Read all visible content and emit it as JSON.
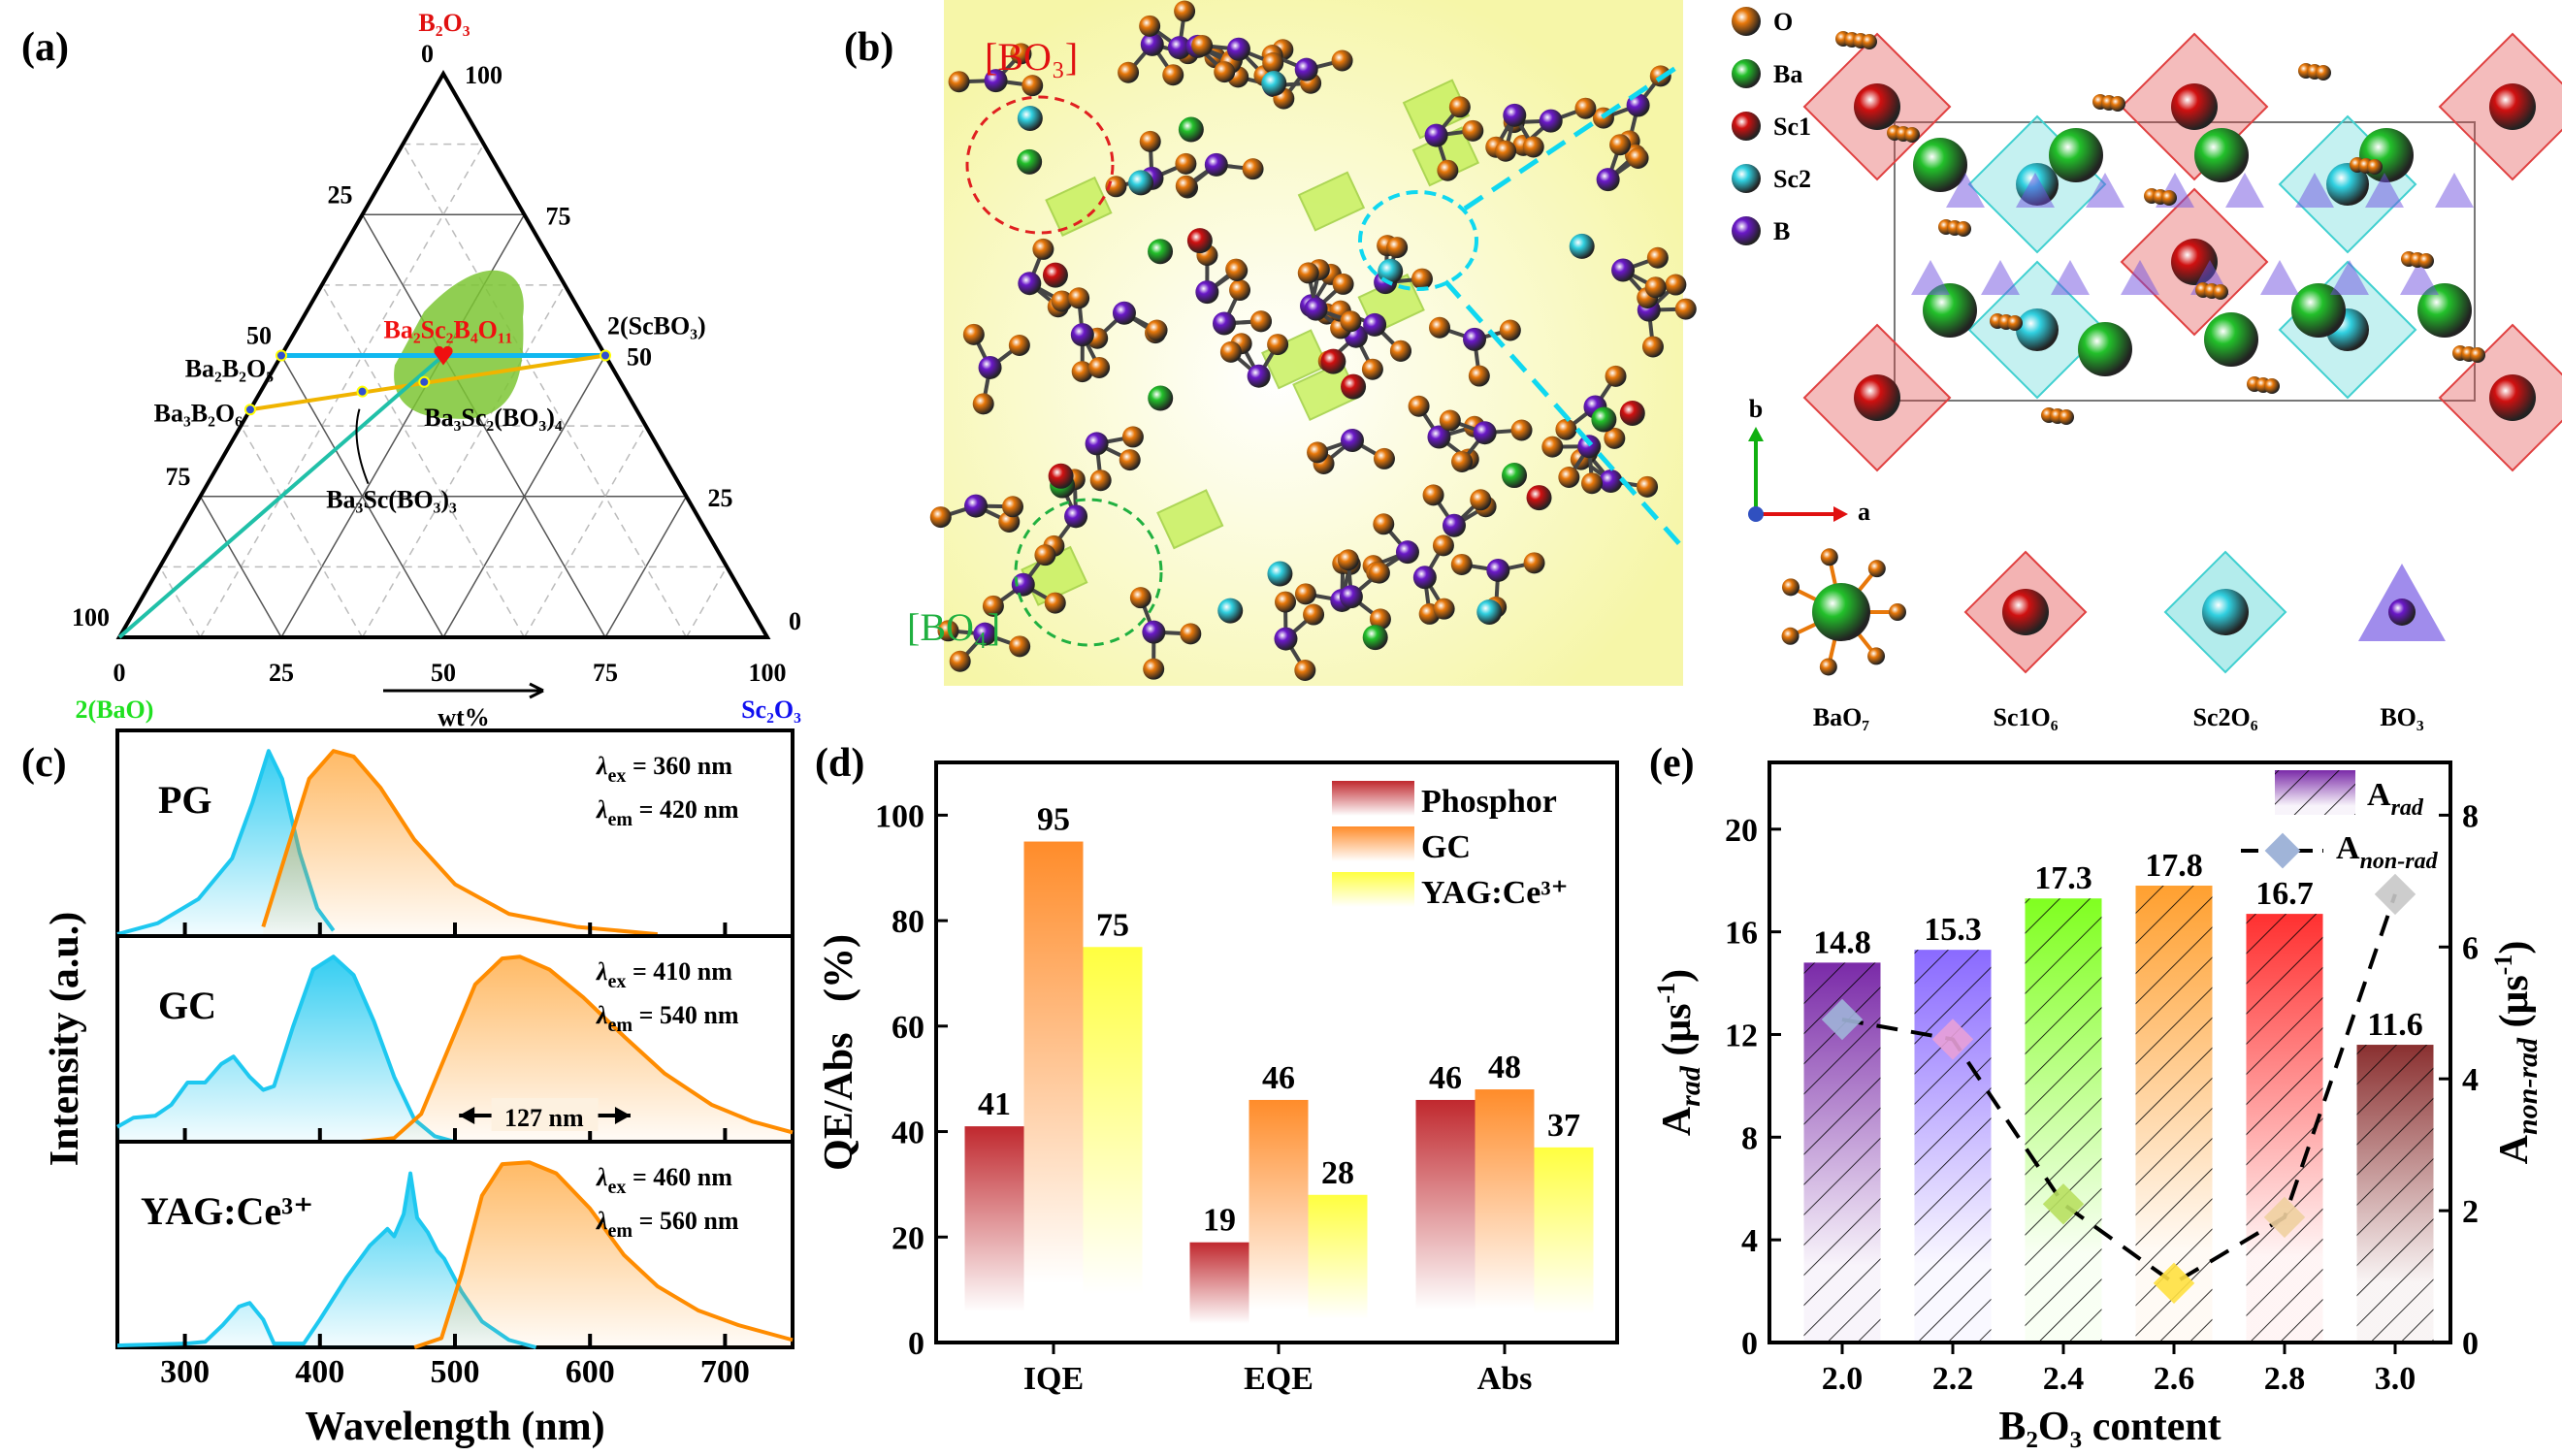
{
  "panels": {
    "a": "(a)",
    "b": "(b)",
    "c": "(c)",
    "d": "(d)",
    "e": "(e)"
  },
  "colors": {
    "cyan": "#1ec8f0",
    "orange": "#ff8c00",
    "phosphor": "#c0282e",
    "gc": "#ff8c2a",
    "yag": "#ffff40",
    "oxygen": "#e8780a",
    "barium": "#22c02a",
    "sc1": "#d01010",
    "sc2": "#30d0e0",
    "boron": "#6a18c8"
  },
  "ternary": {
    "apex_top": "B₂O₃",
    "corner_left": "2(BaO)",
    "corner_right": "Sc₂O₃",
    "unit_label": "wt%",
    "bottom_ticks": [
      "0",
      "25",
      "50",
      "75",
      "100"
    ],
    "right_ticks": [
      "0",
      "25",
      "50",
      "75",
      "100"
    ],
    "left_ticks": [
      "0",
      "25",
      "50",
      "75",
      "100"
    ],
    "compounds": [
      {
        "name": "Ba₂B₂O₅",
        "B2O3": 50,
        "Sc2O3": 0
      },
      {
        "name": "Ba₃B₂O₆",
        "B2O3": 40.4,
        "Sc2O3": 0
      },
      {
        "name": "2(ScBO₃)",
        "B2O3": 50,
        "Sc2O3": 50
      },
      {
        "name": "Ba₂Sc₂B₄O₁₁",
        "B2O3": 50,
        "Sc2O3": 25
      },
      {
        "name": "Ba₃Sc₂(BO₃)₄",
        "B2O3": 45.3,
        "Sc2O3": 24.4
      },
      {
        "name": "Ba₃Sc(BO₃)₃",
        "B2O3": 43.6,
        "Sc2O3": 15.7
      }
    ]
  },
  "structure": {
    "glass_labels": {
      "bo3": "[BO₃]",
      "bo4": "[BO₄]"
    },
    "legend": [
      {
        "label": "O",
        "color": "#e8780a"
      },
      {
        "label": "Ba",
        "color": "#22c02a"
      },
      {
        "label": "Sc1",
        "color": "#d01010"
      },
      {
        "label": "Sc2",
        "color": "#30d0e0"
      },
      {
        "label": "B",
        "color": "#6a18c8"
      }
    ],
    "axis_b": "b",
    "axis_a": "a",
    "polyhedra": [
      "BaO₇",
      "Sc1O₆",
      "Sc2O₆",
      "BO₃"
    ]
  },
  "chart_data": [
    {
      "type": "line",
      "panel": "c",
      "xlabel": "Wavelength (nm)",
      "ylabel": "Intensity (a.u.)",
      "xlim": [
        250,
        750
      ],
      "xticks": [
        "300",
        "400",
        "500",
        "600",
        "700"
      ],
      "fwhm_annotation": "127 nm",
      "samples": [
        {
          "name": "PG",
          "ex_label": "ex",
          "em_label": "em",
          "ex_value": "= 360 nm",
          "em_value": "= 420 nm",
          "excitation": [
            [
              250,
              0.01
            ],
            [
              280,
              0.07
            ],
            [
              310,
              0.2
            ],
            [
              335,
              0.42
            ],
            [
              350,
              0.72
            ],
            [
              362,
              1.0
            ],
            [
              372,
              0.85
            ],
            [
              385,
              0.45
            ],
            [
              398,
              0.15
            ],
            [
              410,
              0.03
            ]
          ],
          "emission": [
            [
              358,
              0.05
            ],
            [
              375,
              0.45
            ],
            [
              392,
              0.85
            ],
            [
              410,
              1.0
            ],
            [
              425,
              0.97
            ],
            [
              445,
              0.8
            ],
            [
              470,
              0.52
            ],
            [
              500,
              0.28
            ],
            [
              540,
              0.12
            ],
            [
              590,
              0.05
            ],
            [
              650,
              0.01
            ]
          ]
        },
        {
          "name": "GC",
          "ex_label": "ex",
          "em_label": "em",
          "ex_value": "= 410 nm",
          "em_value": "= 540 nm",
          "excitation": [
            [
              250,
              0.08
            ],
            [
              262,
              0.13
            ],
            [
              278,
              0.14
            ],
            [
              290,
              0.2
            ],
            [
              302,
              0.32
            ],
            [
              315,
              0.32
            ],
            [
              327,
              0.42
            ],
            [
              336,
              0.46
            ],
            [
              348,
              0.35
            ],
            [
              358,
              0.28
            ],
            [
              366,
              0.3
            ],
            [
              380,
              0.62
            ],
            [
              395,
              0.93
            ],
            [
              410,
              1.0
            ],
            [
              425,
              0.9
            ],
            [
              440,
              0.65
            ],
            [
              455,
              0.35
            ],
            [
              470,
              0.12
            ],
            [
              485,
              0.03
            ],
            [
              500,
              0.0
            ]
          ],
          "emission": [
            [
              430,
              0.0
            ],
            [
              455,
              0.02
            ],
            [
              475,
              0.15
            ],
            [
              495,
              0.5
            ],
            [
              515,
              0.85
            ],
            [
              535,
              0.99
            ],
            [
              548,
              1.0
            ],
            [
              570,
              0.93
            ],
            [
              595,
              0.78
            ],
            [
              625,
              0.57
            ],
            [
              655,
              0.37
            ],
            [
              690,
              0.2
            ],
            [
              720,
              0.11
            ],
            [
              750,
              0.05
            ]
          ]
        },
        {
          "name": "YAG:Ce³⁺",
          "ex_label": "ex",
          "em_label": "em",
          "ex_value": "= 460 nm",
          "em_value": "= 560 nm",
          "excitation": [
            [
              250,
              0.01
            ],
            [
              300,
              0.02
            ],
            [
              315,
              0.03
            ],
            [
              328,
              0.12
            ],
            [
              340,
              0.22
            ],
            [
              348,
              0.24
            ],
            [
              358,
              0.15
            ],
            [
              366,
              0.02
            ],
            [
              388,
              0.02
            ],
            [
              400,
              0.15
            ],
            [
              420,
              0.38
            ],
            [
              437,
              0.55
            ],
            [
              450,
              0.64
            ],
            [
              455,
              0.6
            ],
            [
              462,
              0.72
            ],
            [
              467,
              0.94
            ],
            [
              472,
              0.7
            ],
            [
              480,
              0.62
            ],
            [
              487,
              0.52
            ],
            [
              492,
              0.48
            ],
            [
              505,
              0.3
            ],
            [
              520,
              0.14
            ],
            [
              540,
              0.04
            ],
            [
              560,
              0.0
            ]
          ],
          "emission": [
            [
              470,
              0.0
            ],
            [
              490,
              0.05
            ],
            [
              505,
              0.4
            ],
            [
              520,
              0.82
            ],
            [
              535,
              0.99
            ],
            [
              555,
              1.0
            ],
            [
              575,
              0.94
            ],
            [
              600,
              0.75
            ],
            [
              625,
              0.5
            ],
            [
              650,
              0.33
            ],
            [
              680,
              0.2
            ],
            [
              710,
              0.12
            ],
            [
              750,
              0.04
            ]
          ]
        }
      ]
    },
    {
      "type": "bar",
      "panel": "d",
      "ylabel": "QE/Abs   (%)",
      "ylim": [
        0,
        110
      ],
      "yticks": [
        "0",
        "20",
        "40",
        "60",
        "80",
        "100"
      ],
      "categories": [
        "IQE",
        "EQE",
        "Abs"
      ],
      "legend_position": "top-right",
      "series": [
        {
          "name": "Phosphor",
          "values": [
            41,
            19,
            46
          ],
          "labels": [
            "41",
            "19",
            "46"
          ],
          "color": "#c0282e"
        },
        {
          "name": "GC",
          "values": [
            95,
            46,
            48
          ],
          "labels": [
            "95",
            "46",
            "48"
          ],
          "color": "#ff8c2a"
        },
        {
          "name": "YAG:Ce³⁺",
          "values": [
            75,
            28,
            37
          ],
          "labels": [
            "75",
            "28",
            "37"
          ],
          "color": "#ffff40"
        }
      ]
    },
    {
      "type": "bar",
      "panel": "e",
      "xlabel": "B₂O₃ content",
      "ylabel_left": {
        "main": "A",
        "sub": "rad",
        "unit": " (μs",
        "sup": "-1",
        "close": ")"
      },
      "ylabel_right": {
        "main": "A",
        "sub": "non-rad",
        "unit": " (μs",
        "sup": "-1",
        "close": ")"
      },
      "ylim_left": [
        0,
        22.6
      ],
      "ylim_right": [
        0,
        8.8
      ],
      "yticks_left": [
        "0",
        "4",
        "8",
        "12",
        "16",
        "20"
      ],
      "yticks_right": [
        "0",
        "2",
        "4",
        "6",
        "8"
      ],
      "categories": [
        "2.0",
        "2.2",
        "2.4",
        "2.6",
        "2.8",
        "3.0"
      ],
      "legend_position": "top-right",
      "bars": {
        "name_main": "A",
        "name_sub": "rad",
        "values": [
          14.8,
          15.3,
          17.3,
          17.8,
          16.7,
          11.6
        ],
        "labels": [
          "14.8",
          "15.3",
          "17.3",
          "17.8",
          "16.7",
          "11.6"
        ],
        "colors": [
          "#7a2aa8",
          "#8a6aff",
          "#80ff20",
          "#ffa030",
          "#ff3030",
          "#8a3030"
        ]
      },
      "line": {
        "name_main": "A",
        "name_sub": "non-rad",
        "values": [
          4.9,
          4.6,
          2.1,
          0.9,
          1.9,
          6.8
        ],
        "marker_colors": [
          "#a0b4d8",
          "#e8a0d8",
          "#b8e060",
          "#ffe040",
          "#f0d0a0",
          "#c8c8c8"
        ]
      }
    }
  ]
}
